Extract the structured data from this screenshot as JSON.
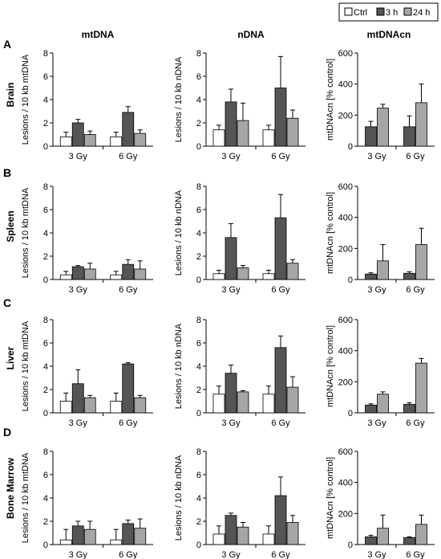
{
  "legend": {
    "items": [
      {
        "label": "Ctrl",
        "color": "#ffffff"
      },
      {
        "label": "3 h",
        "color": "#555555"
      },
      {
        "label": "24 h",
        "color": "#a6a6a6"
      }
    ]
  },
  "columns": [
    "mtDNA",
    "nDNA",
    "mtDNAcn"
  ],
  "rows": [
    {
      "letter": "A",
      "tissue": "Brain"
    },
    {
      "letter": "B",
      "tissue": "Spleen"
    },
    {
      "letter": "C",
      "tissue": "Liver"
    },
    {
      "letter": "D",
      "tissue": "Bone Marrow"
    }
  ],
  "chart_data": [
    {
      "type": "bar",
      "panel": "A",
      "column": "mtDNA",
      "categories": [
        "3 Gy",
        "6 Gy"
      ],
      "ylabel": "Lesions / 10 kb mtDNA",
      "ylim": [
        0,
        8
      ],
      "yticks": [
        0,
        2,
        4,
        6,
        8
      ],
      "series": [
        {
          "name": "Ctrl",
          "values": [
            0.8,
            0.8
          ],
          "errors": [
            0.4,
            0.4
          ]
        },
        {
          "name": "3 h",
          "values": [
            2.0,
            2.9
          ],
          "errors": [
            0.3,
            0.5
          ]
        },
        {
          "name": "24 h",
          "values": [
            1.0,
            1.1
          ],
          "errors": [
            0.3,
            0.3
          ]
        }
      ]
    },
    {
      "type": "bar",
      "panel": "A",
      "column": "nDNA",
      "categories": [
        "3 Gy",
        "6 Gy"
      ],
      "ylabel": "Lesions / 10 kb nDNA",
      "ylim": [
        0,
        8
      ],
      "yticks": [
        0,
        2,
        4,
        6,
        8
      ],
      "series": [
        {
          "name": "Ctrl",
          "values": [
            1.4,
            1.4
          ],
          "errors": [
            0.4,
            0.4
          ]
        },
        {
          "name": "3 h",
          "values": [
            3.8,
            5.0
          ],
          "errors": [
            1.1,
            2.7
          ]
        },
        {
          "name": "24 h",
          "values": [
            2.2,
            2.4
          ],
          "errors": [
            1.5,
            0.7
          ]
        }
      ]
    },
    {
      "type": "bar",
      "panel": "A",
      "column": "mtDNAcn",
      "categories": [
        "3 Gy",
        "6 Gy"
      ],
      "ylabel": "mtDNAcn [% control]",
      "ylim": [
        0,
        600
      ],
      "yticks": [
        0,
        200,
        400,
        600
      ],
      "series": [
        {
          "name": "3 h",
          "values": [
            125,
            125
          ],
          "errors": [
            35,
            70
          ]
        },
        {
          "name": "24 h",
          "values": [
            245,
            280
          ],
          "errors": [
            25,
            120
          ]
        }
      ]
    },
    {
      "type": "bar",
      "panel": "B",
      "column": "mtDNA",
      "categories": [
        "3 Gy",
        "6 Gy"
      ],
      "ylabel": "Lesions / 10 kb mtDNA",
      "ylim": [
        0,
        8
      ],
      "yticks": [
        0,
        2,
        4,
        6,
        8
      ],
      "series": [
        {
          "name": "Ctrl",
          "values": [
            0.4,
            0.4
          ],
          "errors": [
            0.3,
            0.3
          ]
        },
        {
          "name": "3 h",
          "values": [
            1.1,
            1.3
          ],
          "errors": [
            0.1,
            0.4
          ]
        },
        {
          "name": "24 h",
          "values": [
            0.9,
            0.9
          ],
          "errors": [
            0.5,
            0.7
          ]
        }
      ]
    },
    {
      "type": "bar",
      "panel": "B",
      "column": "nDNA",
      "categories": [
        "3 Gy",
        "6 Gy"
      ],
      "ylabel": "Lesions / 10 kb nDNA",
      "ylim": [
        0,
        8
      ],
      "yticks": [
        0,
        2,
        4,
        6,
        8
      ],
      "series": [
        {
          "name": "Ctrl",
          "values": [
            0.5,
            0.5
          ],
          "errors": [
            0.3,
            0.3
          ]
        },
        {
          "name": "3 h",
          "values": [
            3.6,
            5.3
          ],
          "errors": [
            1.2,
            2.0
          ]
        },
        {
          "name": "24 h",
          "values": [
            1.0,
            1.4
          ],
          "errors": [
            0.2,
            0.3
          ]
        }
      ]
    },
    {
      "type": "bar",
      "panel": "B",
      "column": "mtDNAcn",
      "categories": [
        "3 Gy",
        "6 Gy"
      ],
      "ylabel": "mtDNAcn [% control]",
      "ylim": [
        0,
        600
      ],
      "yticks": [
        0,
        200,
        400,
        600
      ],
      "series": [
        {
          "name": "3 h",
          "values": [
            35,
            40
          ],
          "errors": [
            8,
            10
          ]
        },
        {
          "name": "24 h",
          "values": [
            120,
            225
          ],
          "errors": [
            105,
            105
          ]
        }
      ]
    },
    {
      "type": "bar",
      "panel": "C",
      "column": "mtDNA",
      "categories": [
        "3 Gy",
        "6 Gy"
      ],
      "ylabel": "Lesions / 10 kb mtDNA",
      "ylim": [
        0,
        8
      ],
      "yticks": [
        0,
        2,
        4,
        6,
        8
      ],
      "series": [
        {
          "name": "Ctrl",
          "values": [
            1.0,
            1.0
          ],
          "errors": [
            0.7,
            0.7
          ]
        },
        {
          "name": "3 h",
          "values": [
            2.5,
            4.2
          ],
          "errors": [
            1.2,
            0.1
          ]
        },
        {
          "name": "24 h",
          "values": [
            1.3,
            1.3
          ],
          "errors": [
            0.2,
            0.2
          ]
        }
      ]
    },
    {
      "type": "bar",
      "panel": "C",
      "column": "nDNA",
      "categories": [
        "3 Gy",
        "6 Gy"
      ],
      "ylabel": "Lesions / 10 kb nDNA",
      "ylim": [
        0,
        8
      ],
      "yticks": [
        0,
        2,
        4,
        6,
        8
      ],
      "series": [
        {
          "name": "Ctrl",
          "values": [
            1.6,
            1.6
          ],
          "errors": [
            0.7,
            0.7
          ]
        },
        {
          "name": "3 h",
          "values": [
            3.4,
            5.6
          ],
          "errors": [
            0.7,
            1.0
          ]
        },
        {
          "name": "24 h",
          "values": [
            1.8,
            2.2
          ],
          "errors": [
            0.1,
            0.9
          ]
        }
      ]
    },
    {
      "type": "bar",
      "panel": "C",
      "column": "mtDNAcn",
      "categories": [
        "3 Gy",
        "6 Gy"
      ],
      "ylabel": "mtDNAcn [% control]",
      "ylim": [
        0,
        600
      ],
      "yticks": [
        0,
        200,
        400,
        600
      ],
      "series": [
        {
          "name": "3 h",
          "values": [
            50,
            55
          ],
          "errors": [
            8,
            10
          ]
        },
        {
          "name": "24 h",
          "values": [
            120,
            320
          ],
          "errors": [
            15,
            30
          ]
        }
      ]
    },
    {
      "type": "bar",
      "panel": "D",
      "column": "mtDNA",
      "categories": [
        "3 Gy",
        "6 Gy"
      ],
      "ylabel": "Lesions / 10 kb mtDNA",
      "ylim": [
        0,
        8
      ],
      "yticks": [
        0,
        2,
        4,
        6,
        8
      ],
      "series": [
        {
          "name": "Ctrl",
          "values": [
            0.4,
            0.4
          ],
          "errors": [
            0.9,
            0.9
          ]
        },
        {
          "name": "3 h",
          "values": [
            1.6,
            1.8
          ],
          "errors": [
            0.4,
            0.3
          ]
        },
        {
          "name": "24 h",
          "values": [
            1.3,
            1.4
          ],
          "errors": [
            0.7,
            0.8
          ]
        }
      ]
    },
    {
      "type": "bar",
      "panel": "D",
      "column": "nDNA",
      "categories": [
        "3 Gy",
        "6 Gy"
      ],
      "ylabel": "Lesions / 10 kb nDNA",
      "ylim": [
        0,
        8
      ],
      "yticks": [
        0,
        2,
        4,
        6,
        8
      ],
      "series": [
        {
          "name": "Ctrl",
          "values": [
            0.9,
            0.9
          ],
          "errors": [
            0.7,
            0.7
          ]
        },
        {
          "name": "3 h",
          "values": [
            2.5,
            4.2
          ],
          "errors": [
            0.2,
            1.6
          ]
        },
        {
          "name": "24 h",
          "values": [
            1.5,
            1.9
          ],
          "errors": [
            0.4,
            0.6
          ]
        }
      ]
    },
    {
      "type": "bar",
      "panel": "D",
      "column": "mtDNAcn",
      "categories": [
        "3 Gy",
        "6 Gy"
      ],
      "ylabel": "mtDNAcn [% control]",
      "ylim": [
        0,
        600
      ],
      "yticks": [
        0,
        200,
        400,
        600
      ],
      "series": [
        {
          "name": "3 h",
          "values": [
            50,
            45
          ],
          "errors": [
            10,
            5
          ]
        },
        {
          "name": "24 h",
          "values": [
            105,
            130
          ],
          "errors": [
            85,
            60
          ]
        }
      ]
    }
  ]
}
